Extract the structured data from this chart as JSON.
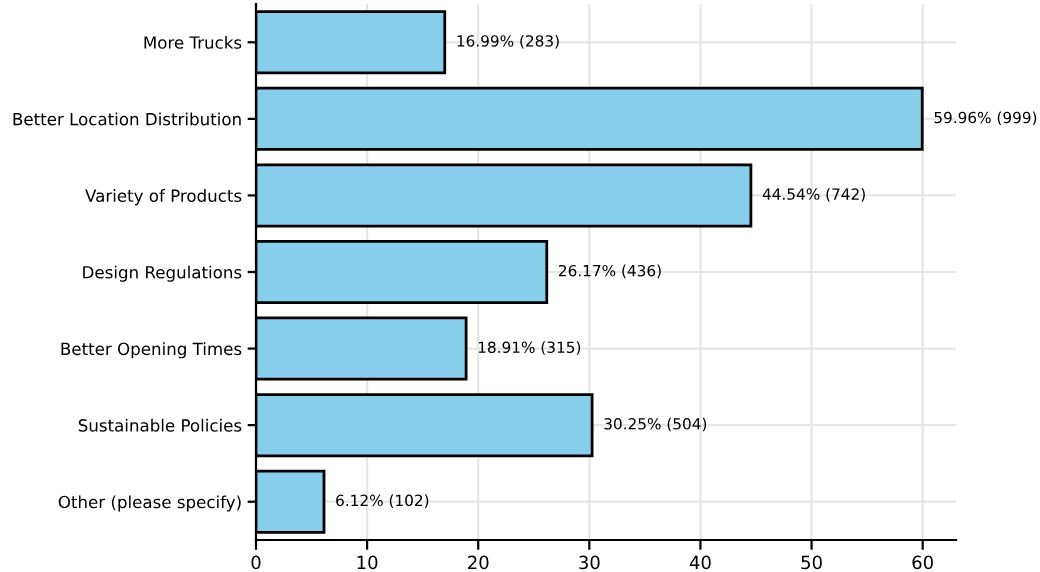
{
  "chart_data": {
    "type": "bar",
    "orientation": "horizontal",
    "categories": [
      "More Trucks",
      "Better Location Distribution",
      "Variety of Products",
      "Design Regulations",
      "Better Opening Times",
      "Sustainable Policies",
      "Other (please specify)"
    ],
    "values": [
      16.99,
      59.96,
      44.54,
      26.17,
      18.91,
      30.25,
      6.12
    ],
    "value_labels": [
      "16.99% (283)",
      "59.96% (999)",
      "44.54% (742)",
      "26.17% (436)",
      "18.91% (315)",
      "30.25% (504)",
      "6.12% (102)"
    ],
    "color": "#87ceeb",
    "xlim": [
      0,
      63
    ],
    "xticks": [
      0,
      10,
      20,
      30,
      40,
      50,
      60
    ],
    "grid": true
  }
}
